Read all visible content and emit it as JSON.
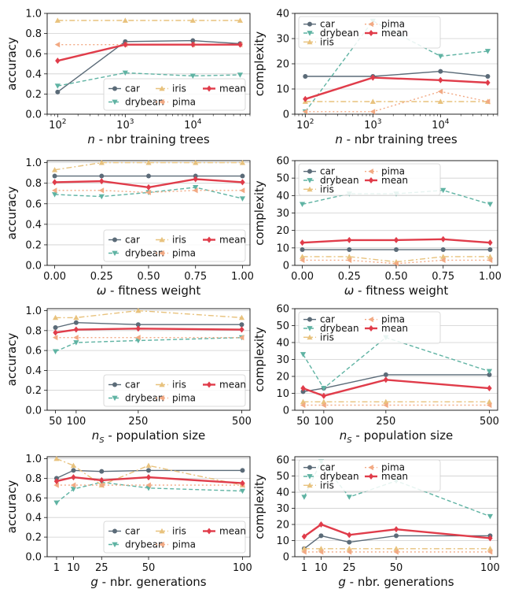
{
  "series_styles": {
    "car": {
      "label": "car",
      "color": "#5b6b78",
      "dash": "",
      "marker": "circle",
      "width": 1.4
    },
    "drybean": {
      "label": "drybean",
      "color": "#5fb3a3",
      "dash": "5,3",
      "marker": "tri_down",
      "width": 1.4
    },
    "iris": {
      "label": "iris",
      "color": "#e8c27d",
      "dash": "7,3,2,3",
      "marker": "tri_up",
      "width": 1.4
    },
    "pima": {
      "label": "pima",
      "color": "#f2a983",
      "dash": "2,3",
      "marker": "tri_left",
      "width": 1.4
    },
    "mean": {
      "label": "mean",
      "color": "#e03c4a",
      "dash": "",
      "marker": "diamond",
      "width": 2.4
    }
  },
  "chart_data": [
    {
      "type": "line",
      "ylabel": "accuracy",
      "xlabel": "n - nbr training trees",
      "xlabel_italic": "n",
      "xscale": "log",
      "xlim": [
        70,
        70000
      ],
      "ylim": [
        0,
        1.0
      ],
      "yticks": [
        0.0,
        0.2,
        0.4,
        0.6,
        0.8,
        1.0
      ],
      "ytick_labels": [
        "0.0",
        "0.2",
        "0.4",
        "0.6",
        "0.8",
        "1.0"
      ],
      "xticks": [
        100,
        1000,
        10000
      ],
      "xtick_labels": [
        [
          "10",
          "2"
        ],
        [
          "10",
          "3"
        ],
        [
          "10",
          "4"
        ]
      ],
      "x": [
        100,
        1000,
        10000,
        50000
      ],
      "series": [
        {
          "name": "car",
          "values": [
            0.22,
            0.72,
            0.73,
            0.7
          ]
        },
        {
          "name": "drybean",
          "values": [
            0.28,
            0.41,
            0.38,
            0.39
          ]
        },
        {
          "name": "iris",
          "values": [
            0.93,
            0.93,
            0.93,
            0.93
          ]
        },
        {
          "name": "pima",
          "values": [
            0.69,
            0.69,
            0.69,
            0.69
          ]
        },
        {
          "name": "mean",
          "values": [
            0.53,
            0.69,
            0.69,
            0.69
          ]
        }
      ],
      "legend": "lower-right"
    },
    {
      "type": "line",
      "ylabel": "complexity",
      "xlabel": "n - nbr training trees",
      "xlabel_italic": "n",
      "xscale": "log",
      "xlim": [
        70,
        70000
      ],
      "ylim": [
        0,
        40
      ],
      "yticks": [
        0,
        10,
        20,
        30,
        40
      ],
      "ytick_labels": [
        "0",
        "10",
        "20",
        "30",
        "40"
      ],
      "xticks": [
        100,
        1000,
        10000
      ],
      "xtick_labels": [
        [
          "10",
          "2"
        ],
        [
          "10",
          "3"
        ],
        [
          "10",
          "4"
        ]
      ],
      "x": [
        100,
        1000,
        10000,
        50000
      ],
      "series": [
        {
          "name": "car",
          "values": [
            15,
            15,
            17,
            15
          ]
        },
        {
          "name": "drybean",
          "values": [
            1,
            37,
            23,
            25
          ]
        },
        {
          "name": "iris",
          "values": [
            5,
            5,
            5,
            5
          ]
        },
        {
          "name": "pima",
          "values": [
            1,
            1,
            9,
            5
          ]
        },
        {
          "name": "mean",
          "values": [
            6,
            14.5,
            13.5,
            12.5
          ]
        }
      ],
      "legend": "upper-left"
    },
    {
      "type": "line",
      "ylabel": "accuracy",
      "xlabel": "ω - fitness weight",
      "xlabel_italic": "ω",
      "xscale": "linear",
      "xlim": [
        -0.04,
        1.04
      ],
      "ylim": [
        0,
        1.02
      ],
      "yticks": [
        0.0,
        0.2,
        0.4,
        0.6,
        0.8,
        1.0
      ],
      "ytick_labels": [
        "0.0",
        "0.2",
        "0.4",
        "0.6",
        "0.8",
        "1.0"
      ],
      "xticks": [
        0,
        0.25,
        0.5,
        0.75,
        1.0
      ],
      "xtick_labels": [
        "0.00",
        "0.25",
        "0.50",
        "0.75",
        "1.00"
      ],
      "x": [
        0,
        0.25,
        0.5,
        0.75,
        1.0
      ],
      "series": [
        {
          "name": "car",
          "values": [
            0.87,
            0.87,
            0.87,
            0.87,
            0.87
          ]
        },
        {
          "name": "drybean",
          "values": [
            0.69,
            0.67,
            0.71,
            0.76,
            0.65
          ]
        },
        {
          "name": "iris",
          "values": [
            0.93,
            1.0,
            1.0,
            1.0,
            1.0
          ]
        },
        {
          "name": "pima",
          "values": [
            0.73,
            0.73,
            0.71,
            0.73,
            0.73
          ]
        },
        {
          "name": "mean",
          "values": [
            0.81,
            0.82,
            0.76,
            0.84,
            0.81
          ]
        }
      ],
      "legend": "lower-right"
    },
    {
      "type": "line",
      "ylabel": "complexity",
      "xlabel": "ω - fitness weight",
      "xlabel_italic": "ω",
      "xscale": "linear",
      "xlim": [
        -0.04,
        1.04
      ],
      "ylim": [
        0,
        60
      ],
      "yticks": [
        0,
        10,
        20,
        30,
        40,
        50,
        60
      ],
      "ytick_labels": [
        "0",
        "10",
        "20",
        "30",
        "40",
        "50",
        "60"
      ],
      "xticks": [
        0,
        0.25,
        0.5,
        0.75,
        1.0
      ],
      "xtick_labels": [
        "0.00",
        "0.25",
        "0.50",
        "0.75",
        "1.00"
      ],
      "x": [
        0,
        0.25,
        0.5,
        0.75,
        1.0
      ],
      "series": [
        {
          "name": "car",
          "values": [
            9,
            9,
            9,
            9,
            9
          ]
        },
        {
          "name": "drybean",
          "values": [
            35,
            41,
            41,
            43,
            35
          ]
        },
        {
          "name": "iris",
          "values": [
            5,
            5,
            2,
            5,
            5
          ]
        },
        {
          "name": "pima",
          "values": [
            3,
            3,
            1,
            3,
            3
          ]
        },
        {
          "name": "mean",
          "values": [
            13,
            14.5,
            14.5,
            15,
            13
          ]
        }
      ],
      "legend": "upper-left"
    },
    {
      "type": "line",
      "ylabel": "accuracy",
      "xlabel": "nS - population size",
      "xlabel_italic": "n",
      "xlabel_sub": "S",
      "xscale": "linear",
      "xlim": [
        30,
        520
      ],
      "ylim": [
        0,
        1.02
      ],
      "yticks": [
        0.0,
        0.2,
        0.4,
        0.6,
        0.8,
        1.0
      ],
      "ytick_labels": [
        "0.0",
        "0.2",
        "0.4",
        "0.6",
        "0.8",
        "1.0"
      ],
      "xticks": [
        50,
        100,
        250,
        500
      ],
      "xtick_labels": [
        "50",
        "100",
        "250",
        "500"
      ],
      "x": [
        50,
        100,
        250,
        500
      ],
      "series": [
        {
          "name": "car",
          "values": [
            0.83,
            0.88,
            0.86,
            0.86
          ]
        },
        {
          "name": "drybean",
          "values": [
            0.59,
            0.68,
            0.7,
            0.73
          ]
        },
        {
          "name": "iris",
          "values": [
            0.93,
            0.93,
            1.0,
            0.93
          ]
        },
        {
          "name": "pima",
          "values": [
            0.73,
            0.73,
            0.73,
            0.73
          ]
        },
        {
          "name": "mean",
          "values": [
            0.78,
            0.81,
            0.82,
            0.81
          ]
        }
      ],
      "legend": "lower-right"
    },
    {
      "type": "line",
      "ylabel": "complexity",
      "xlabel": "nS - population size",
      "xlabel_italic": "n",
      "xlabel_sub": "S",
      "xscale": "linear",
      "xlim": [
        30,
        520
      ],
      "ylim": [
        0,
        60
      ],
      "yticks": [
        0,
        10,
        20,
        30,
        40,
        50,
        60
      ],
      "ytick_labels": [
        "0",
        "10",
        "20",
        "30",
        "40",
        "50",
        "60"
      ],
      "xticks": [
        50,
        100,
        250,
        500
      ],
      "xtick_labels": [
        "50",
        "100",
        "250",
        "500"
      ],
      "x": [
        50,
        100,
        250,
        500
      ],
      "series": [
        {
          "name": "car",
          "values": [
            11,
            13,
            21,
            21
          ]
        },
        {
          "name": "drybean",
          "values": [
            33,
            13,
            43,
            23
          ]
        },
        {
          "name": "iris",
          "values": [
            5,
            5,
            5,
            5
          ]
        },
        {
          "name": "pima",
          "values": [
            3,
            3,
            3,
            3
          ]
        },
        {
          "name": "mean",
          "values": [
            13,
            8.5,
            18,
            13
          ]
        }
      ],
      "legend": "upper-left"
    },
    {
      "type": "line",
      "ylabel": "accuracy",
      "xlabel": "g - nbr. generations",
      "xlabel_italic": "g",
      "xscale": "linear",
      "xlim": [
        -4,
        104
      ],
      "ylim": [
        0,
        1.02
      ],
      "yticks": [
        0.0,
        0.2,
        0.4,
        0.6,
        0.8,
        1.0
      ],
      "ytick_labels": [
        "0.0",
        "0.2",
        "0.4",
        "0.6",
        "0.8",
        "1.0"
      ],
      "xticks": [
        1,
        10,
        25,
        50,
        100
      ],
      "xtick_labels": [
        "1",
        "10",
        "25",
        "50",
        "100"
      ],
      "x": [
        1,
        10,
        25,
        50,
        100
      ],
      "series": [
        {
          "name": "car",
          "values": [
            0.8,
            0.88,
            0.87,
            0.88,
            0.88
          ]
        },
        {
          "name": "drybean",
          "values": [
            0.55,
            0.69,
            0.76,
            0.7,
            0.67
          ]
        },
        {
          "name": "iris",
          "values": [
            1.0,
            0.93,
            0.73,
            0.93,
            0.73
          ]
        },
        {
          "name": "pima",
          "values": [
            0.73,
            0.73,
            0.73,
            0.73,
            0.73
          ]
        },
        {
          "name": "mean",
          "values": [
            0.77,
            0.81,
            0.78,
            0.81,
            0.75
          ]
        }
      ],
      "legend": "lower-right"
    },
    {
      "type": "line",
      "ylabel": "complexity",
      "xlabel": "g - nbr. generations",
      "xlabel_italic": "g",
      "xscale": "linear",
      "xlim": [
        -4,
        104
      ],
      "ylim": [
        0,
        62
      ],
      "yticks": [
        0,
        10,
        20,
        30,
        40,
        50,
        60
      ],
      "ytick_labels": [
        "0",
        "10",
        "20",
        "30",
        "40",
        "50",
        "60"
      ],
      "xticks": [
        1,
        10,
        25,
        50,
        100
      ],
      "xtick_labels": [
        "1",
        "10",
        "25",
        "50",
        "100"
      ],
      "x": [
        1,
        10,
        25,
        50,
        100
      ],
      "series": [
        {
          "name": "car",
          "values": [
            5,
            13,
            9,
            13,
            13
          ]
        },
        {
          "name": "drybean",
          "values": [
            37,
            59,
            37,
            47,
            25
          ]
        },
        {
          "name": "iris",
          "values": [
            5,
            5,
            5,
            5,
            5
          ]
        },
        {
          "name": "pima",
          "values": [
            3,
            3,
            3,
            3,
            3
          ]
        },
        {
          "name": "mean",
          "values": [
            12.5,
            20,
            13.5,
            17,
            11.5
          ]
        }
      ],
      "legend": "upper-left"
    }
  ]
}
